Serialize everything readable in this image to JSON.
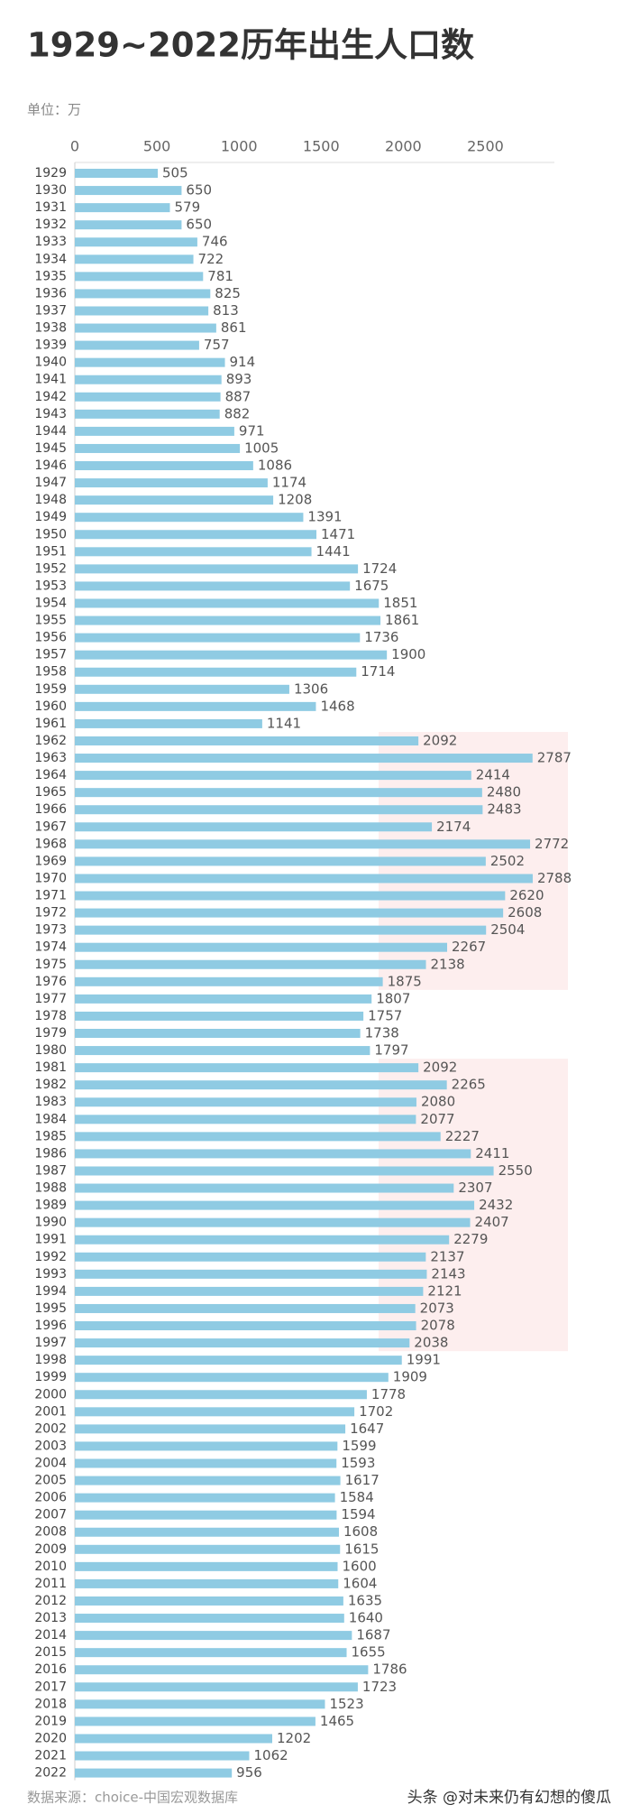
{
  "chart_data": {
    "type": "bar",
    "orientation": "horizontal",
    "title": "1929~2022历年出生人口数",
    "unit": "单位：万",
    "source": "数据来源：choice-中国宏观数据库",
    "watermark": "头条 @对未来仍有幻想的傻瓜",
    "color": "#8fcbe3",
    "grid": false,
    "xlim": [
      0,
      2920
    ],
    "xticks": [
      0,
      500,
      1000,
      1500,
      2000,
      2500
    ],
    "categories": [
      "1929",
      "1930",
      "1931",
      "1932",
      "1933",
      "1934",
      "1935",
      "1936",
      "1937",
      "1938",
      "1939",
      "1940",
      "1941",
      "1942",
      "1943",
      "1944",
      "1945",
      "1946",
      "1947",
      "1948",
      "1949",
      "1950",
      "1951",
      "1952",
      "1953",
      "1954",
      "1955",
      "1956",
      "1957",
      "1958",
      "1959",
      "1960",
      "1961",
      "1962",
      "1963",
      "1964",
      "1965",
      "1966",
      "1967",
      "1968",
      "1969",
      "1970",
      "1971",
      "1972",
      "1973",
      "1974",
      "1975",
      "1976",
      "1977",
      "1978",
      "1979",
      "1980",
      "1981",
      "1982",
      "1983",
      "1984",
      "1985",
      "1986",
      "1987",
      "1988",
      "1989",
      "1990",
      "1991",
      "1992",
      "1993",
      "1994",
      "1995",
      "1996",
      "1997",
      "1998",
      "1999",
      "2000",
      "2001",
      "2002",
      "2003",
      "2004",
      "2005",
      "2006",
      "2007",
      "2008",
      "2009",
      "2010",
      "2011",
      "2012",
      "2013",
      "2014",
      "2015",
      "2016",
      "2017",
      "2018",
      "2019",
      "2020",
      "2021",
      "2022"
    ],
    "values": [
      505,
      650,
      579,
      650,
      746,
      722,
      781,
      825,
      813,
      861,
      757,
      914,
      893,
      887,
      882,
      971,
      1005,
      1086,
      1174,
      1208,
      1391,
      1471,
      1441,
      1724,
      1675,
      1851,
      1861,
      1736,
      1900,
      1714,
      1306,
      1468,
      1141,
      2092,
      2787,
      2414,
      2480,
      2483,
      2174,
      2772,
      2502,
      2788,
      2620,
      2608,
      2504,
      2267,
      2138,
      1875,
      1807,
      1757,
      1738,
      1797,
      2092,
      2265,
      2080,
      2077,
      2227,
      2411,
      2550,
      2307,
      2432,
      2407,
      2279,
      2137,
      2143,
      2121,
      2073,
      2078,
      2038,
      1991,
      1909,
      1778,
      1702,
      1647,
      1599,
      1593,
      1617,
      1584,
      1594,
      1608,
      1615,
      1600,
      1604,
      1635,
      1640,
      1687,
      1655,
      1786,
      1723,
      1523,
      1465,
      1202,
      1062,
      956
    ]
  }
}
